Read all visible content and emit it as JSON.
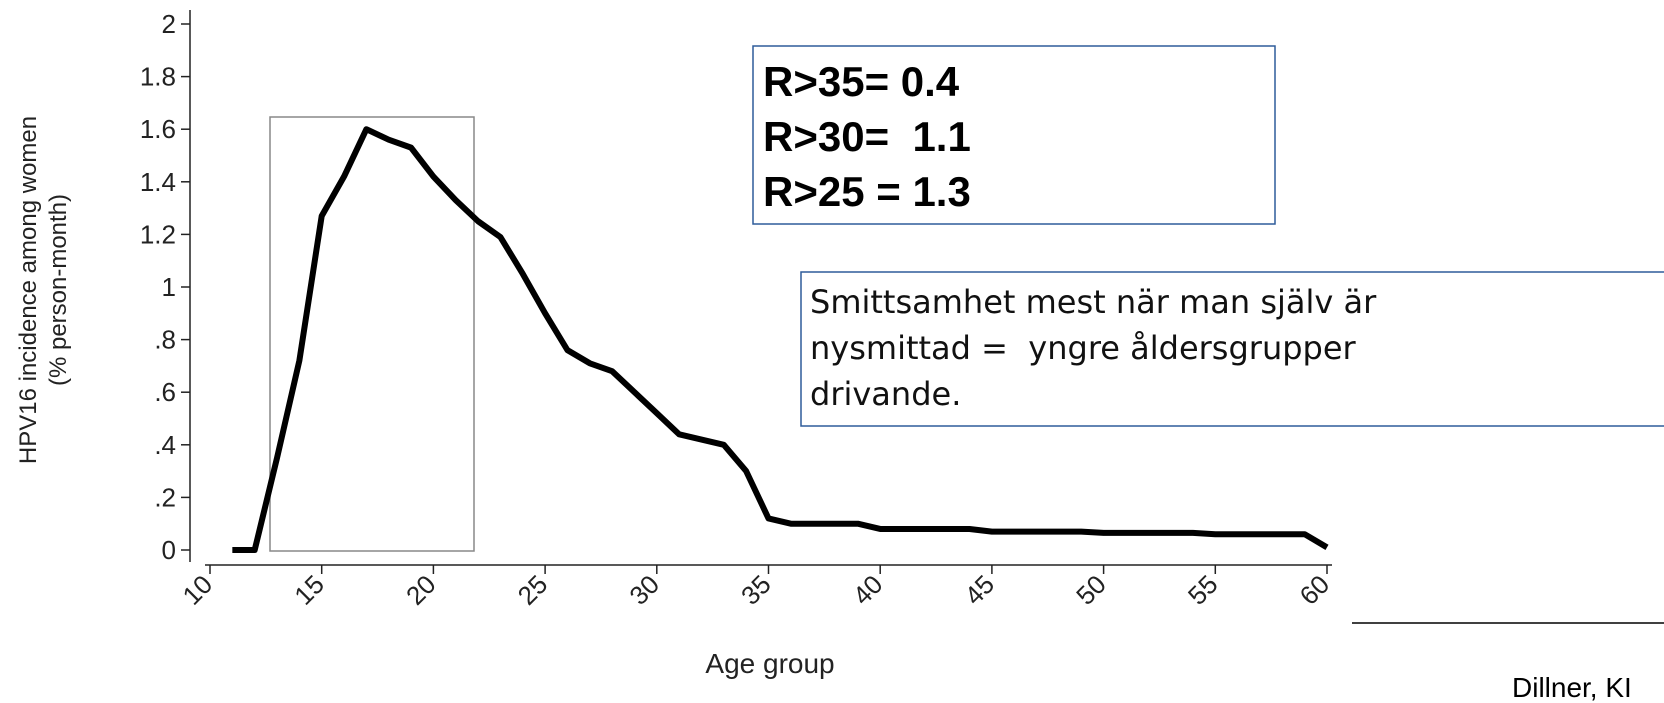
{
  "chart_data": {
    "type": "line",
    "xlabel": "Age group",
    "ylabel": [
      "HPV16 incidence among women",
      "(% person-month)"
    ],
    "x": [
      11,
      12,
      13,
      14,
      15,
      16,
      17,
      18,
      19,
      20,
      21,
      22,
      23,
      24,
      25,
      26,
      27,
      28,
      29,
      30,
      31,
      32,
      33,
      34,
      35,
      36,
      39,
      40,
      44,
      45,
      49,
      50,
      54,
      55,
      59,
      60
    ],
    "values": [
      0,
      0,
      0.35,
      0.72,
      1.27,
      1.42,
      1.6,
      1.56,
      1.53,
      1.42,
      1.33,
      1.25,
      1.19,
      1.05,
      0.9,
      0.76,
      0.71,
      0.68,
      0.6,
      0.52,
      0.44,
      0.42,
      0.4,
      0.3,
      0.12,
      0.1,
      0.1,
      0.08,
      0.08,
      0.07,
      0.07,
      0.065,
      0.065,
      0.06,
      0.06,
      0.01
    ],
    "color": "#000000",
    "xlim": [
      10,
      60
    ],
    "xticks": [
      10,
      15,
      20,
      25,
      30,
      35,
      40,
      45,
      50,
      55,
      60
    ],
    "ylim": [
      0,
      2
    ],
    "yticks": [
      0,
      {
        "value": 0.2,
        "label": ".2"
      },
      {
        "value": 0.4,
        "label": ".4"
      },
      {
        "value": 0.6,
        "label": ".6"
      },
      {
        "value": 0.8,
        "label": ".8"
      },
      1,
      1.2,
      1.4,
      1.6,
      1.8,
      2
    ],
    "annotations": [
      {
        "lines": [
          "R>35= 0.4",
          "R>30=  1.1",
          "R>25 = 1.3"
        ]
      },
      {
        "lines": [
          "Smittsamhet mest när man själv är",
          "nysmittad =  yngre åldersgrupper",
          "drivande."
        ]
      }
    ],
    "source": "Dillner, KI"
  }
}
